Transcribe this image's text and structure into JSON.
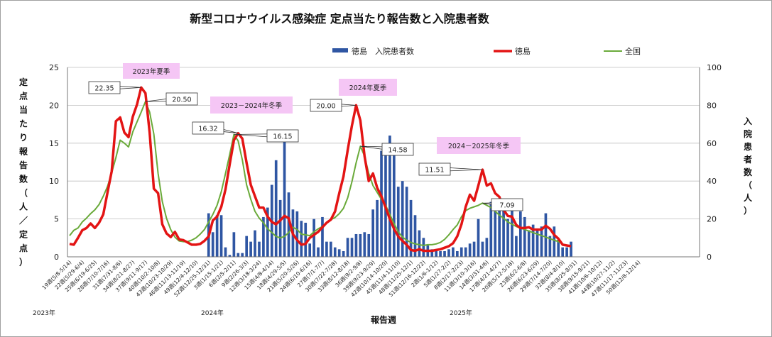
{
  "chart_data": {
    "type": "bar+line",
    "title": "新型コロナウイルス感染症 定点当たり報告数と入院患者数",
    "xlabel": "報告週",
    "ylabel_left": "定点当たり報告数（人／定点）",
    "ylabel_right": "入院患者数（人）",
    "ylim_left": [
      0,
      25
    ],
    "ylim_right": [
      0,
      100
    ],
    "yticks_left": [
      "0",
      "5",
      "10",
      "15",
      "20",
      "25"
    ],
    "yticks_right": [
      "0",
      "20",
      "40",
      "60",
      "80",
      "100"
    ],
    "legend": {
      "bar": "徳島　入院患者数",
      "line_red": "徳島",
      "line_green": "全国"
    },
    "year_labels": [
      "2023年",
      "2024年",
      "2025年"
    ],
    "x_tick_labels": [
      "19週(5/8-5/14)",
      "22週(5/29-6/4)",
      "25週(6/19-6/25)",
      "28週(7/10-7/16)",
      "31週(7/31-8/6)",
      "34週(8/21-8/27)",
      "37週(9/11-9/17)",
      "40週(10/2-10/8)",
      "43週(10/23-10/29)",
      "46週(11/13-11/19)",
      "49週(12/4-12/10)",
      "52週(12/25-12/31)",
      "3週(1/15-1/21)",
      "6週(2/5-2/11)",
      "9週(2/26-3/3)",
      "12週(3/18-3/24)",
      "15週(4/8-4/14)",
      "18週(4/29-5/5)",
      "21週(5/20-5/26)",
      "24週(6/10-6/16)",
      "27週(7/1-7/7)",
      "30週(7/22-7/28)",
      "33週(8/12-8/18)",
      "36週(9/2-9/8)",
      "39週(9/23-9/29)",
      "42週(10/14-10/20)",
      "45週(11/4-11/10)",
      "48週(11/25-12/1)",
      "51週(12/16-12/22)",
      "2週(1/6-1/12)",
      "5週(1/27-2/2)",
      "8週(2/17-2/23)",
      "11週(3/10-3/16)",
      "14週(3/31-4/6)",
      "17週(4/21-4/27)",
      "20週(5/12-5/18)",
      "23週(6/2-6/8)",
      "26週(6/23-6/29)",
      "29週(7/14-7/20)",
      "32週(8/4-8/10)",
      "35週(8/25-8/31)",
      "38週(9/15-9/21)",
      "41週(10/6-10/12)",
      "44週(10/27-11/2)",
      "47週(11/17-11/23)",
      "50週(12/8-12/14)"
    ],
    "series": [
      {
        "name": "徳島　入院患者数",
        "axis": "right",
        "values": [
          null,
          null,
          null,
          null,
          null,
          null,
          null,
          null,
          null,
          null,
          null,
          null,
          null,
          null,
          null,
          null,
          null,
          null,
          null,
          null,
          null,
          null,
          null,
          null,
          null,
          null,
          null,
          null,
          null,
          null,
          null,
          null,
          null,
          23,
          13,
          22,
          22,
          5,
          1,
          13,
          2,
          2,
          11,
          8,
          14,
          8,
          21,
          26,
          38,
          51,
          30,
          62,
          34,
          25,
          24,
          19,
          18,
          7,
          20,
          5,
          21,
          8,
          8,
          5,
          4,
          3,
          10,
          10,
          12,
          12,
          13,
          12,
          25,
          30,
          56,
          54,
          64,
          58,
          37,
          40,
          37,
          30,
          22,
          14,
          10,
          6,
          4,
          4,
          3,
          3,
          4,
          5,
          3,
          5,
          5,
          7,
          8,
          20,
          8,
          10,
          29,
          24,
          26,
          28,
          20,
          28,
          11,
          24,
          21,
          14,
          17,
          15,
          16,
          23,
          11,
          16,
          9,
          5,
          5,
          8
        ]
      },
      {
        "name": "徳島",
        "axis": "left",
        "values": [
          1.7,
          1.6,
          2.5,
          3.5,
          3.8,
          4.4,
          3.8,
          4.5,
          5.6,
          8.5,
          11.3,
          17.9,
          18.4,
          16.4,
          15.8,
          18.5,
          20.1,
          22.35,
          21.6,
          16.4,
          9.0,
          8.4,
          4.3,
          3.1,
          2.6,
          3.3,
          2.3,
          2.2,
          1.9,
          1.6,
          1.6,
          1.7,
          2.1,
          2.7,
          4.8,
          5.3,
          6.6,
          8.9,
          12.2,
          15.4,
          16.32,
          15.6,
          12.4,
          9.5,
          8.0,
          6.5,
          6.5,
          5.3,
          4.6,
          4.3,
          4.8,
          5.4,
          5.1,
          3.0,
          2.2,
          1.6,
          1.7,
          2.5,
          2.9,
          3.3,
          3.9,
          4.5,
          4.9,
          6.0,
          8.4,
          10.6,
          14.1,
          17.3,
          20.0,
          18.0,
          13.3,
          10.0,
          11.0,
          9.1,
          8.0,
          6.5,
          5.0,
          3.7,
          2.7,
          2.1,
          1.6,
          0.9,
          0.8,
          1.0,
          0.8,
          0.8,
          0.8,
          0.9,
          1.0,
          1.2,
          1.4,
          1.8,
          2.7,
          4.3,
          6.6,
          8.2,
          7.4,
          9.4,
          11.51,
          9.4,
          9.7,
          8.4,
          7.9,
          6.2,
          5.4,
          5.3,
          4.2,
          3.8,
          3.8,
          3.9,
          3.6,
          3.6,
          3.6,
          4.1,
          3.7,
          2.9,
          2.4,
          1.6,
          1.5,
          1.4
        ]
      },
      {
        "name": "全国",
        "axis": "left",
        "values": [
          2.8,
          3.5,
          3.8,
          4.6,
          5.1,
          5.7,
          6.2,
          6.9,
          8.0,
          9.3,
          11.1,
          13.1,
          15.4,
          15.0,
          14.5,
          16.5,
          17.8,
          19.1,
          20.5,
          19.1,
          16.2,
          11.0,
          7.3,
          5.1,
          3.6,
          2.6,
          2.1,
          2.0,
          2.0,
          2.2,
          2.5,
          3.0,
          3.6,
          4.6,
          5.6,
          6.8,
          8.6,
          11.0,
          13.5,
          16.15,
          15.3,
          12.8,
          9.5,
          7.6,
          6.0,
          5.1,
          4.5,
          3.7,
          3.2,
          2.7,
          2.5,
          2.7,
          3.2,
          3.9,
          3.6,
          3.0,
          2.9,
          2.8,
          3.3,
          3.7,
          4.0,
          4.4,
          4.9,
          5.2,
          5.7,
          6.4,
          7.8,
          9.9,
          12.4,
          14.6,
          13.3,
          11.0,
          9.4,
          8.5,
          7.6,
          6.8,
          5.6,
          4.4,
          3.3,
          2.6,
          2.2,
          1.9,
          1.7,
          1.6,
          1.5,
          1.6,
          1.6,
          1.7,
          1.9,
          2.3,
          2.9,
          3.6,
          4.2,
          5.3,
          6.1,
          6.4,
          6.6,
          6.8,
          7.09,
          6.8,
          6.5,
          6.0,
          5.5,
          5.1,
          4.6,
          4.3,
          4.0,
          3.8,
          3.6,
          3.4,
          3.2,
          3.0,
          2.8,
          2.6,
          2.4,
          2.2,
          2.0,
          1.7,
          1.5,
          1.4
        ]
      }
    ],
    "annotations": [
      {
        "text": "22.35",
        "color": "#c00000"
      },
      {
        "text": "20.50",
        "color": "#2e8b3a"
      },
      {
        "text": "16.32",
        "color": "#c00000"
      },
      {
        "text": "16.15",
        "color": "#2e8b3a"
      },
      {
        "text": "20.00",
        "color": "#c00000"
      },
      {
        "text": "14.58",
        "color": "#2e8b3a"
      },
      {
        "text": "11.51",
        "color": "#c00000"
      },
      {
        "text": "7.09",
        "color": "#2e8b3a"
      }
    ],
    "season_labels": [
      "2023年夏季",
      "2023－2024年冬季",
      "2024年夏季",
      "2024－2025年冬季"
    ],
    "colors": {
      "bar": "#2f56a3",
      "line_red": "#e31414",
      "line_green": "#6aaa3a",
      "season_fill": "#f5c6f5"
    }
  }
}
